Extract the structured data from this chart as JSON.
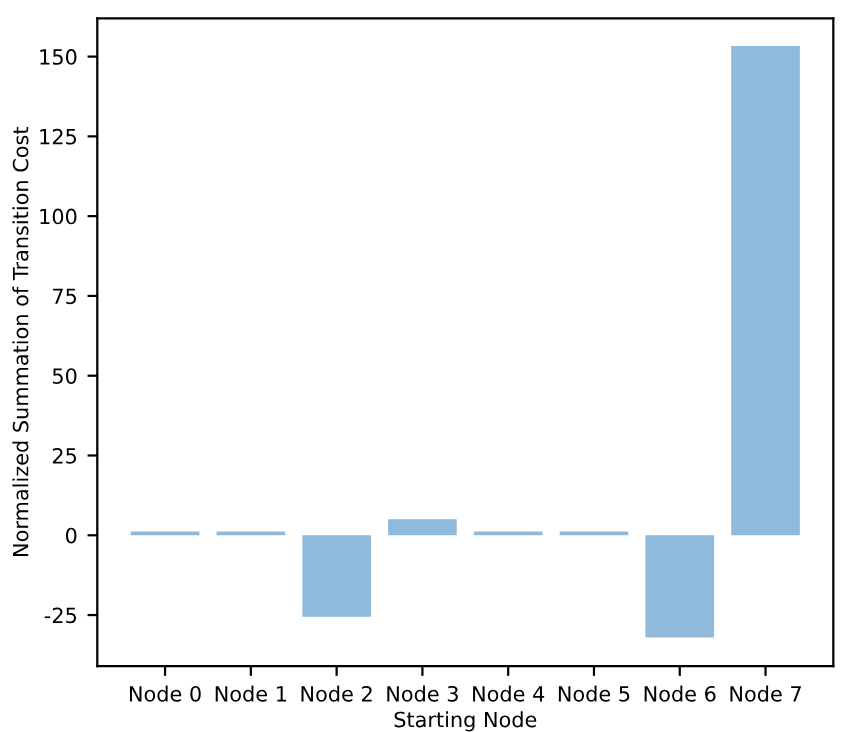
{
  "chart_data": {
    "type": "bar",
    "xlabel": "Starting Node",
    "ylabel": "Normalized Summation of Transition Cost",
    "categories": [
      "Node 0",
      "Node 1",
      "Node 2",
      "Node 3",
      "Node 4",
      "Node 5",
      "Node 6",
      "Node 7"
    ],
    "values": [
      1.2,
      1.2,
      -25.5,
      5,
      1.2,
      1.2,
      -32,
      153.3
    ],
    "color": "#8fbadb",
    "ylim": [
      -41,
      162
    ],
    "yticks": [
      -25,
      0,
      25,
      50,
      75,
      100,
      125,
      150
    ],
    "grid": false
  }
}
